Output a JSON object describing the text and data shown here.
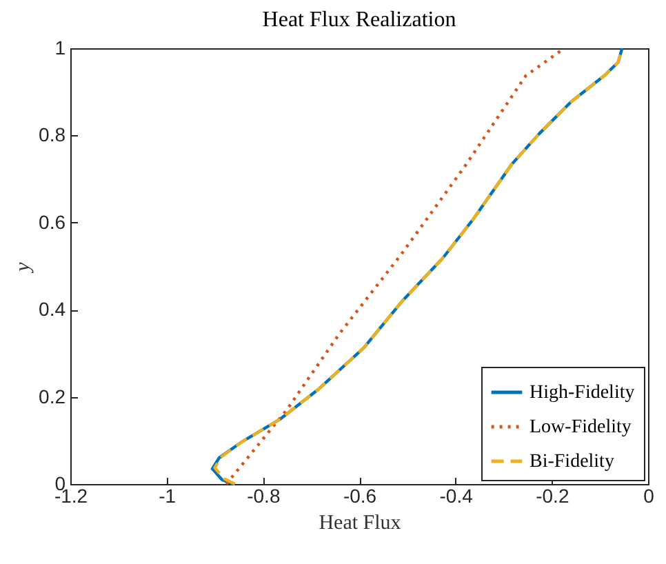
{
  "chart_data": {
    "type": "line",
    "title": "Heat Flux Realization",
    "xlabel": "Heat Flux",
    "ylabel": "y",
    "xlim": [
      -1.2,
      0
    ],
    "ylim": [
      0,
      1
    ],
    "xticks": [
      -1.2,
      -1,
      -0.8,
      -0.6,
      -0.4,
      -0.2,
      0
    ],
    "yticks": [
      0,
      0.2,
      0.4,
      0.6,
      0.8,
      1
    ],
    "grid": false,
    "legend": "bottom right",
    "series": [
      {
        "name": "High-Fidelity",
        "color": "#0072bd",
        "line_style": "solid",
        "x": [
          -0.862,
          -0.885,
          -0.905,
          -0.891,
          -0.842,
          -0.764,
          -0.684,
          -0.59,
          -0.512,
          -0.426,
          -0.363,
          -0.283,
          -0.226,
          -0.16,
          -0.091,
          -0.062,
          -0.054
        ],
        "values": [
          0,
          0.01,
          0.035,
          0.06,
          0.098,
          0.149,
          0.218,
          0.313,
          0.418,
          0.519,
          0.608,
          0.734,
          0.804,
          0.877,
          0.937,
          0.968,
          1
        ]
      },
      {
        "name": "Low-Fidelity",
        "color": "#d95319",
        "line_style": "dotted",
        "x": [
          -0.876,
          -0.75,
          -0.641,
          -0.512,
          -0.38,
          -0.254,
          -0.174
        ],
        "values": [
          0,
          0.171,
          0.345,
          0.528,
          0.73,
          0.937,
          1
        ]
      },
      {
        "name": "Bi-Fidelity",
        "color": "#edb120",
        "line_style": "dashed",
        "x": [
          -0.858,
          -0.88,
          -0.9,
          -0.888,
          -0.842,
          -0.764,
          -0.684,
          -0.59,
          -0.512,
          -0.426,
          -0.363,
          -0.283,
          -0.226,
          -0.16,
          -0.091,
          -0.062,
          -0.054
        ],
        "values": [
          0,
          0.012,
          0.037,
          0.061,
          0.098,
          0.149,
          0.218,
          0.313,
          0.418,
          0.519,
          0.608,
          0.734,
          0.804,
          0.877,
          0.937,
          0.968,
          1
        ]
      }
    ]
  }
}
